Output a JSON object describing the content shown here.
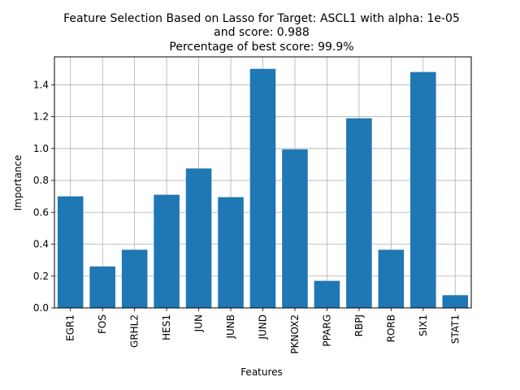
{
  "chart_data": {
    "type": "bar",
    "title_lines": [
      "Feature Selection Based on Lasso for Target: ASCL1 with alpha: 1e-05",
      "and score: 0.988",
      "Percentage of best score: 99.9%"
    ],
    "xlabel": "Features",
    "ylabel": "Importance",
    "categories": [
      "EGR1",
      "FOS",
      "GRHL2",
      "HES1",
      "JUN",
      "JUNB",
      "JUND",
      "PKNOX2",
      "PPARG",
      "RBPJ",
      "RORB",
      "SIX1",
      "STAT1"
    ],
    "values": [
      0.7,
      0.26,
      0.365,
      0.71,
      0.875,
      0.695,
      1.5,
      0.995,
      0.17,
      1.19,
      0.365,
      1.48,
      0.08
    ],
    "ylim": [
      0,
      1.575
    ],
    "yticks": [
      0.0,
      0.2,
      0.4,
      0.6,
      0.8,
      1.0,
      1.2,
      1.4
    ],
    "ytick_labels": [
      "0.0",
      "0.2",
      "0.4",
      "0.6",
      "0.8",
      "1.0",
      "1.2",
      "1.4"
    ],
    "grid": true,
    "bar_color": "#1f77b4",
    "grid_color": "#b0b0b0"
  }
}
